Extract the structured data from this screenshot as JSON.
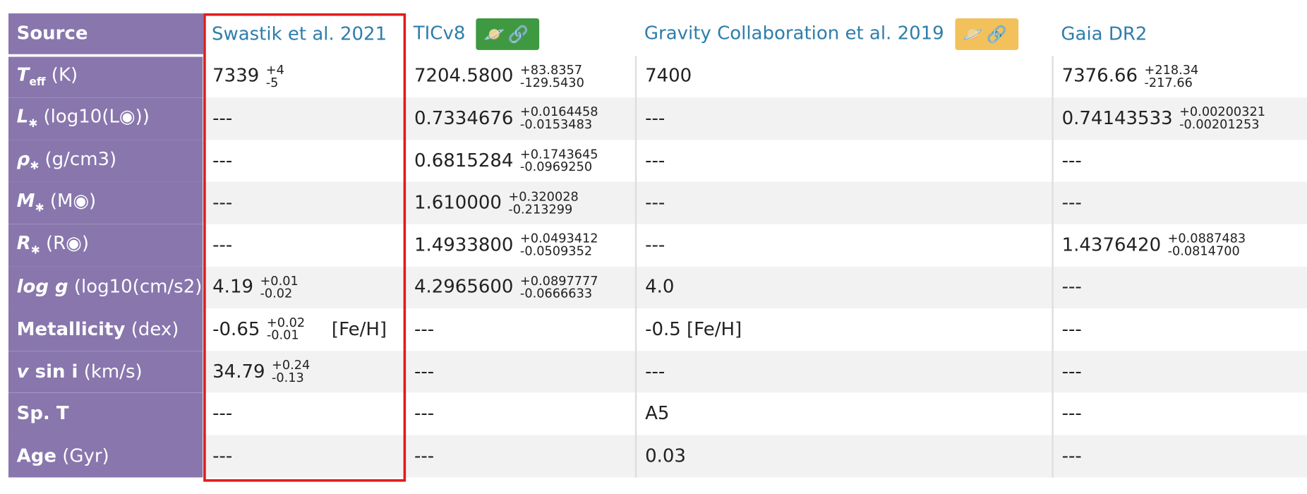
{
  "table": {
    "corner_label": "Source",
    "columns": [
      {
        "label": "Swastik et al. 2021",
        "badge": null
      },
      {
        "label": "TICv8",
        "badge": {
          "icons": [
            "planet-icon",
            "link-icon"
          ],
          "color": "#3f9941"
        }
      },
      {
        "label": "Gravity Collaboration et al. 2019",
        "badge": {
          "icons": [
            "planet-icon",
            "link-icon"
          ],
          "color": "#f2c15c"
        }
      },
      {
        "label": "Gaia DR2",
        "badge": null
      }
    ],
    "rows": [
      {
        "sym": "T",
        "sub": "eff",
        "sup": "",
        "post": "",
        "unit": " (K)",
        "cells": [
          {
            "v": "7339",
            "p": "+4",
            "m": "-5",
            "flag": ""
          },
          {
            "v": "7204.5800",
            "p": "+83.8357",
            "m": "-129.5430",
            "flag": ""
          },
          {
            "v": "7400",
            "p": "",
            "m": "",
            "flag": ""
          },
          {
            "v": "7376.66",
            "p": "+218.34",
            "m": "-217.66",
            "flag": ""
          }
        ]
      },
      {
        "sym": "L",
        "sub": "✱",
        "sup": "",
        "post": "",
        "unit": " (log10(L◉))",
        "cells": [
          {
            "v": "---",
            "p": "",
            "m": "",
            "flag": ""
          },
          {
            "v": "0.7334676",
            "p": "+0.0164458",
            "m": "-0.0153483",
            "flag": ""
          },
          {
            "v": "---",
            "p": "",
            "m": "",
            "flag": ""
          },
          {
            "v": "0.74143533",
            "p": "+0.00200321",
            "m": "-0.00201253",
            "flag": ""
          }
        ]
      },
      {
        "sym": "ρ",
        "sub": "✱",
        "sup": "",
        "post": "",
        "unit": " (g/cm3)",
        "cells": [
          {
            "v": "---",
            "p": "",
            "m": "",
            "flag": ""
          },
          {
            "v": "0.6815284",
            "p": "+0.1743645",
            "m": "-0.0969250",
            "flag": ""
          },
          {
            "v": "---",
            "p": "",
            "m": "",
            "flag": ""
          },
          {
            "v": "---",
            "p": "",
            "m": "",
            "flag": ""
          }
        ]
      },
      {
        "sym": "M",
        "sub": "✱",
        "sup": "",
        "post": "",
        "unit": " (M◉)",
        "cells": [
          {
            "v": "---",
            "p": "",
            "m": "",
            "flag": ""
          },
          {
            "v": "1.610000",
            "p": "+0.320028",
            "m": "-0.213299",
            "flag": ""
          },
          {
            "v": "---",
            "p": "",
            "m": "",
            "flag": ""
          },
          {
            "v": "---",
            "p": "",
            "m": "",
            "flag": ""
          }
        ]
      },
      {
        "sym": "R",
        "sub": "✱",
        "sup": "",
        "post": "",
        "unit": " (R◉)",
        "cells": [
          {
            "v": "---",
            "p": "",
            "m": "",
            "flag": ""
          },
          {
            "v": "1.4933800",
            "p": "+0.0493412",
            "m": "-0.0509352",
            "flag": ""
          },
          {
            "v": "---",
            "p": "",
            "m": "",
            "flag": ""
          },
          {
            "v": "1.4376420",
            "p": "+0.0887483",
            "m": "-0.0814700",
            "flag": ""
          }
        ]
      },
      {
        "sym": "log g",
        "sub": "",
        "sup": "",
        "post": "",
        "unit": " (log10(cm/s2))",
        "cells": [
          {
            "v": "4.19",
            "p": "+0.01",
            "m": "-0.02",
            "flag": ""
          },
          {
            "v": "4.2965600",
            "p": "+0.0897777",
            "m": "-0.0666633",
            "flag": ""
          },
          {
            "v": "4.0",
            "p": "",
            "m": "",
            "flag": ""
          },
          {
            "v": "---",
            "p": "",
            "m": "",
            "flag": ""
          }
        ]
      },
      {
        "sym": "",
        "sub": "",
        "sup": "",
        "post": "Metallicity",
        "unit": " (dex)",
        "cells": [
          {
            "v": "-0.65",
            "p": "+0.02",
            "m": "-0.01",
            "flag": "[Fe/H]"
          },
          {
            "v": "---",
            "p": "",
            "m": "",
            "flag": ""
          },
          {
            "v": "-0.5 [Fe/H]",
            "p": "",
            "m": "",
            "flag": ""
          },
          {
            "v": "---",
            "p": "",
            "m": "",
            "flag": ""
          }
        ]
      },
      {
        "sym": "v",
        "sub": "",
        "sup": "",
        "post": " sin i",
        "unit": " (km/s)",
        "cells": [
          {
            "v": "34.79",
            "p": "+0.24",
            "m": "-0.13",
            "flag": ""
          },
          {
            "v": "---",
            "p": "",
            "m": "",
            "flag": ""
          },
          {
            "v": "---",
            "p": "",
            "m": "",
            "flag": ""
          },
          {
            "v": "---",
            "p": "",
            "m": "",
            "flag": ""
          }
        ]
      },
      {
        "sym": "",
        "sub": "",
        "sup": "",
        "post": "Sp. T",
        "unit": "",
        "cells": [
          {
            "v": "---",
            "p": "",
            "m": "",
            "flag": ""
          },
          {
            "v": "---",
            "p": "",
            "m": "",
            "flag": ""
          },
          {
            "v": "A5",
            "p": "",
            "m": "",
            "flag": ""
          },
          {
            "v": "---",
            "p": "",
            "m": "",
            "flag": ""
          }
        ]
      },
      {
        "sym": "",
        "sub": "",
        "sup": "",
        "post": "Age",
        "unit": " (Gyr)",
        "cells": [
          {
            "v": "---",
            "p": "",
            "m": "",
            "flag": ""
          },
          {
            "v": "---",
            "p": "",
            "m": "",
            "flag": ""
          },
          {
            "v": "0.03",
            "p": "",
            "m": "",
            "flag": ""
          },
          {
            "v": "---",
            "p": "",
            "m": "",
            "flag": ""
          }
        ]
      }
    ],
    "highlight": {
      "column": "Swastik et al. 2021",
      "color": "#e3191c"
    }
  },
  "colors": {
    "row_header_bg": "#8876ad",
    "link": "#2e7eab",
    "stripe": "#f2f2f2"
  }
}
